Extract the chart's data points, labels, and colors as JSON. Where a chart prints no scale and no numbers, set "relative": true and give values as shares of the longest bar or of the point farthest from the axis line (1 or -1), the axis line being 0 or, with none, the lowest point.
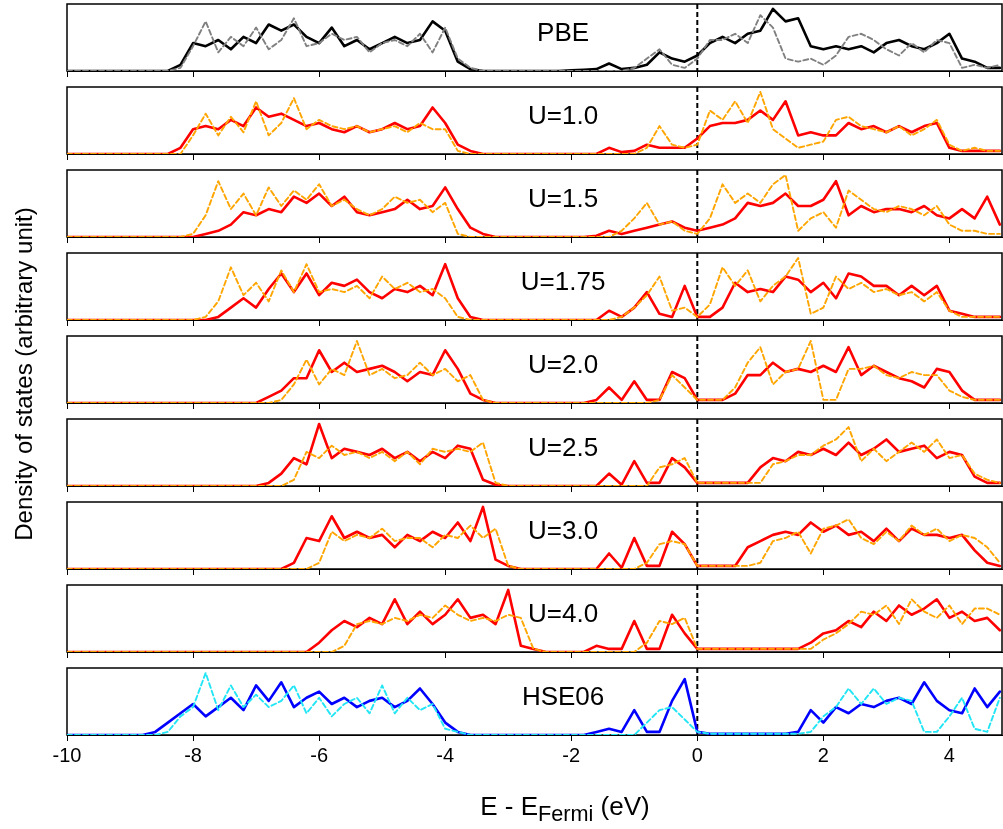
{
  "chart_data": [
    {
      "type": "line",
      "relative": true,
      "annotations": [
        "PBE"
      ],
      "tick_labels": false,
      "marker": "none",
      "xlim": [
        -10,
        4.85
      ],
      "xticks": [
        -10,
        -8,
        -6,
        -4,
        -2,
        0,
        2,
        4
      ],
      "ref_lines": [
        {
          "axis": "x",
          "value": 0,
          "color": "#000000",
          "line_style": "dashed"
        }
      ],
      "x": [
        -10,
        -8.8,
        -8.6,
        -8.4,
        -8.2,
        -8,
        -7.8,
        -7.6,
        -7.4,
        -7.2,
        -7,
        -6.8,
        -6.6,
        -6.4,
        -6.2,
        -6,
        -5.8,
        -5.6,
        -5.4,
        -5.2,
        -5,
        -4.8,
        -4.6,
        -4.4,
        -4.2,
        -4,
        -3.8,
        -3.6,
        -3.4,
        -3.2,
        -3,
        -2.8,
        -2.6,
        -2.4,
        -2.2,
        -2,
        -1.8,
        -1.6,
        -1.4,
        -1.2,
        -1,
        -0.8,
        -0.6,
        -0.4,
        -0.2,
        0,
        0.2,
        0.4,
        0.6,
        0.8,
        1,
        1.2,
        1.4,
        1.6,
        1.8,
        2,
        2.2,
        2.4,
        2.6,
        2.8,
        3,
        3.2,
        3.4,
        3.6,
        3.8,
        4,
        4.2,
        4.4,
        4.6,
        4.8
      ],
      "series": [
        {
          "color": "#000000",
          "line_style": "solid",
          "values": [
            0,
            0,
            0,
            0,
            0.1,
            0.45,
            0.4,
            0.5,
            0.35,
            0.55,
            0.45,
            0.75,
            0.65,
            0.75,
            0.55,
            0.45,
            0.7,
            0.4,
            0.5,
            0.35,
            0.45,
            0.55,
            0.45,
            0.5,
            0.8,
            0.65,
            0.15,
            0.03,
            0,
            0,
            0,
            0,
            0,
            0,
            0,
            0.01,
            0.02,
            0.03,
            0.12,
            0.03,
            0.05,
            0.1,
            0.3,
            0.2,
            0.15,
            0.25,
            0.45,
            0.55,
            0.45,
            0.6,
            0.65,
            1,
            0.8,
            0.85,
            0.4,
            0.35,
            0.4,
            0.35,
            0.4,
            0.3,
            0.45,
            0.5,
            0.4,
            0.35,
            0.45,
            0.6,
            0.2,
            0.15,
            0.05,
            0.05
          ]
        },
        {
          "color": "#808080",
          "line_style": "dashed",
          "values": [
            0,
            0,
            0,
            0,
            0.05,
            0.4,
            0.8,
            0.3,
            0.55,
            0.4,
            0.7,
            0.35,
            0.5,
            0.85,
            0.4,
            0.45,
            0.6,
            0.5,
            0.55,
            0.3,
            0.45,
            0.5,
            0.4,
            0.6,
            0.3,
            0.7,
            0.2,
            0.05,
            0,
            0,
            0,
            0,
            0,
            0,
            0,
            0,
            0,
            0,
            0,
            0,
            0.05,
            0.2,
            0.35,
            0.1,
            0.05,
            0.2,
            0.5,
            0.5,
            0.6,
            0.45,
            0.9,
            0.7,
            0.2,
            0.15,
            0.2,
            0.1,
            0.25,
            0.55,
            0.6,
            0.5,
            0.35,
            0.25,
            0.45,
            0.3,
            0.5,
            0.45,
            0.05,
            0.1,
            0.05,
            0.1
          ]
        }
      ]
    },
    {
      "type": "line",
      "relative": true,
      "annotations": [
        "U=1.0"
      ],
      "tick_labels": false,
      "marker": "none",
      "xlim": [
        -10,
        4.85
      ],
      "xticks": [
        -10,
        -8,
        -6,
        -4,
        -2,
        0,
        2,
        4
      ],
      "ref_lines": [
        {
          "axis": "x",
          "value": 0,
          "color": "#000000",
          "line_style": "dashed"
        }
      ],
      "x": [
        -10,
        -8.8,
        -8.6,
        -8.4,
        -8.2,
        -8,
        -7.8,
        -7.6,
        -7.4,
        -7.2,
        -7,
        -6.8,
        -6.6,
        -6.4,
        -6.2,
        -6,
        -5.8,
        -5.6,
        -5.4,
        -5.2,
        -5,
        -4.8,
        -4.6,
        -4.4,
        -4.2,
        -4,
        -3.8,
        -3.6,
        -3.4,
        -3.2,
        -3,
        -2.8,
        -2.6,
        -2.4,
        -2.2,
        -2,
        -1.8,
        -1.6,
        -1.4,
        -1.2,
        -1,
        -0.8,
        -0.6,
        -0.4,
        -0.2,
        0,
        0.2,
        0.4,
        0.6,
        0.8,
        1,
        1.2,
        1.4,
        1.6,
        1.8,
        2,
        2.2,
        2.4,
        2.6,
        2.8,
        3,
        3.2,
        3.4,
        3.6,
        3.8,
        4,
        4.2,
        4.4,
        4.6,
        4.8
      ],
      "series": [
        {
          "color": "#ff0000",
          "line_style": "solid",
          "values": [
            0,
            0,
            0,
            0,
            0.1,
            0.4,
            0.45,
            0.4,
            0.55,
            0.45,
            0.75,
            0.6,
            0.65,
            0.55,
            0.45,
            0.5,
            0.4,
            0.35,
            0.45,
            0.35,
            0.4,
            0.5,
            0.4,
            0.45,
            0.75,
            0.5,
            0.15,
            0.05,
            0,
            0,
            0,
            0,
            0,
            0,
            0,
            0,
            0,
            0,
            0.1,
            0.03,
            0.05,
            0.15,
            0.1,
            0.1,
            0.1,
            0.25,
            0.45,
            0.5,
            0.5,
            0.55,
            0.7,
            0.55,
            0.85,
            0.3,
            0.35,
            0.3,
            0.3,
            0.5,
            0.4,
            0.45,
            0.35,
            0.45,
            0.35,
            0.45,
            0.5,
            0.1,
            0.05,
            0.05,
            0.05,
            0.05
          ]
        },
        {
          "color": "#ffa500",
          "line_style": "dashed",
          "values": [
            0,
            0,
            0,
            0,
            0,
            0.3,
            0.65,
            0.3,
            0.6,
            0.35,
            0.85,
            0.3,
            0.5,
            0.9,
            0.4,
            0.55,
            0.45,
            0.4,
            0.45,
            0.35,
            0.4,
            0.45,
            0.35,
            0.5,
            0.4,
            0.4,
            0.05,
            0,
            0,
            0,
            0,
            0,
            0,
            0,
            0,
            0,
            0,
            0,
            0,
            0,
            0,
            0.1,
            0.45,
            0.15,
            0.1,
            0.15,
            0.7,
            0.55,
            0.85,
            0.5,
            1,
            0.4,
            0.25,
            0.1,
            0.15,
            0.2,
            0.55,
            0.6,
            0.45,
            0.4,
            0.35,
            0.45,
            0.3,
            0.4,
            0.55,
            0.15,
            0.05,
            0.1,
            0.05,
            0.05
          ]
        }
      ]
    },
    {
      "type": "line",
      "relative": true,
      "annotations": [
        "U=1.5"
      ],
      "tick_labels": false,
      "marker": "none",
      "xlim": [
        -10,
        4.85
      ],
      "xticks": [
        -10,
        -8,
        -6,
        -4,
        -2,
        0,
        2,
        4
      ],
      "ref_lines": [
        {
          "axis": "x",
          "value": 0,
          "color": "#000000",
          "line_style": "dashed"
        }
      ],
      "x": [
        -10,
        -8.8,
        -8.6,
        -8.4,
        -8.2,
        -8,
        -7.8,
        -7.6,
        -7.4,
        -7.2,
        -7,
        -6.8,
        -6.6,
        -6.4,
        -6.2,
        -6,
        -5.8,
        -5.6,
        -5.4,
        -5.2,
        -5,
        -4.8,
        -4.6,
        -4.4,
        -4.2,
        -4,
        -3.8,
        -3.6,
        -3.4,
        -3.2,
        -3,
        -2.8,
        -2.6,
        -2.4,
        -2.2,
        -2,
        -1.8,
        -1.6,
        -1.4,
        -1.2,
        -1,
        -0.8,
        -0.6,
        -0.4,
        -0.2,
        0,
        0.2,
        0.4,
        0.6,
        0.8,
        1,
        1.2,
        1.4,
        1.6,
        1.8,
        2,
        2.2,
        2.4,
        2.6,
        2.8,
        3,
        3.2,
        3.4,
        3.6,
        3.8,
        4,
        4.2,
        4.4,
        4.6,
        4.8
      ],
      "series": [
        {
          "color": "#ff0000",
          "line_style": "solid",
          "values": [
            0,
            0,
            0,
            0,
            0,
            0,
            0.05,
            0.1,
            0.2,
            0.4,
            0.35,
            0.45,
            0.4,
            0.65,
            0.55,
            0.7,
            0.5,
            0.65,
            0.4,
            0.35,
            0.4,
            0.45,
            0.6,
            0.45,
            0.5,
            0.8,
            0.45,
            0.15,
            0.05,
            0,
            0,
            0,
            0,
            0,
            0,
            0,
            0,
            0.02,
            0.1,
            0.05,
            0.1,
            0.15,
            0.2,
            0.25,
            0.15,
            0.1,
            0.15,
            0.2,
            0.3,
            0.55,
            0.5,
            0.55,
            0.7,
            0.5,
            0.5,
            0.6,
            0.9,
            0.35,
            0.5,
            0.4,
            0.45,
            0.45,
            0.4,
            0.5,
            0.35,
            0.3,
            0.45,
            0.3,
            0.65,
            0.2
          ]
        },
        {
          "color": "#ffa500",
          "line_style": "dashed",
          "values": [
            0,
            0,
            0,
            0,
            0,
            0.05,
            0.35,
            0.9,
            0.45,
            0.7,
            0.35,
            0.8,
            0.5,
            0.75,
            0.6,
            0.85,
            0.5,
            0.6,
            0.45,
            0.35,
            0.45,
            0.65,
            0.55,
            0.6,
            0.4,
            0.55,
            0.05,
            0,
            0,
            0,
            0,
            0,
            0,
            0,
            0,
            0,
            0,
            0,
            0,
            0.1,
            0.3,
            0.55,
            0.2,
            0.25,
            0.1,
            0.05,
            0.3,
            0.85,
            0.55,
            0.7,
            0.55,
            0.85,
            1,
            0.1,
            0.3,
            0.4,
            0.15,
            0.75,
            0.6,
            0.45,
            0.4,
            0.5,
            0.45,
            0.35,
            0.5,
            0.2,
            0.1,
            0.1,
            0.05,
            0.05
          ]
        }
      ]
    },
    {
      "type": "line",
      "relative": true,
      "annotations": [
        "U=1.75"
      ],
      "tick_labels": false,
      "marker": "none",
      "xlim": [
        -10,
        4.85
      ],
      "xticks": [
        -10,
        -8,
        -6,
        -4,
        -2,
        0,
        2,
        4
      ],
      "ref_lines": [
        {
          "axis": "x",
          "value": 0,
          "color": "#000000",
          "line_style": "dashed"
        }
      ],
      "x": [
        -10,
        -8.8,
        -8.6,
        -8.4,
        -8.2,
        -8,
        -7.8,
        -7.6,
        -7.4,
        -7.2,
        -7,
        -6.8,
        -6.6,
        -6.4,
        -6.2,
        -6,
        -5.8,
        -5.6,
        -5.4,
        -5.2,
        -5,
        -4.8,
        -4.6,
        -4.4,
        -4.2,
        -4,
        -3.8,
        -3.6,
        -3.4,
        -3.2,
        -3,
        -2.8,
        -2.6,
        -2.4,
        -2.2,
        -2,
        -1.8,
        -1.6,
        -1.4,
        -1.2,
        -1,
        -0.8,
        -0.6,
        -0.4,
        -0.2,
        0,
        0.2,
        0.4,
        0.6,
        0.8,
        1,
        1.2,
        1.4,
        1.6,
        1.8,
        2,
        2.2,
        2.4,
        2.6,
        2.8,
        3,
        3.2,
        3.4,
        3.6,
        3.8,
        4,
        4.2,
        4.4,
        4.6,
        4.8
      ],
      "series": [
        {
          "color": "#ff0000",
          "line_style": "solid",
          "values": [
            0,
            0,
            0,
            0,
            0,
            0,
            0,
            0.05,
            0.2,
            0.35,
            0.2,
            0.5,
            0.75,
            0.45,
            0.75,
            0.4,
            0.6,
            0.55,
            0.65,
            0.45,
            0.35,
            0.5,
            0.45,
            0.55,
            0.4,
            0.9,
            0.35,
            0.05,
            0,
            0,
            0,
            0,
            0,
            0,
            0,
            0,
            0,
            0,
            0.15,
            0.05,
            0.2,
            0.45,
            0.1,
            0.05,
            0.55,
            0.05,
            0.05,
            0.2,
            0.6,
            0.45,
            0.5,
            0.45,
            0.7,
            0.65,
            0.45,
            0.6,
            0.35,
            0.75,
            0.7,
            0.55,
            0.55,
            0.4,
            0.55,
            0.4,
            0.55,
            0.15,
            0.1,
            0.05,
            0.05,
            0.05
          ]
        },
        {
          "color": "#ffa500",
          "line_style": "dashed",
          "values": [
            0,
            0,
            0,
            0,
            0,
            0,
            0.05,
            0.3,
            0.85,
            0.4,
            0.6,
            0.3,
            0.8,
            0.45,
            0.9,
            0.45,
            0.5,
            0.45,
            0.55,
            0.35,
            0.7,
            0.5,
            0.6,
            0.45,
            0.5,
            0.35,
            0.05,
            0,
            0,
            0,
            0,
            0,
            0,
            0,
            0,
            0,
            0,
            0,
            0,
            0.05,
            0.2,
            0.4,
            0.7,
            0.15,
            0.2,
            0.05,
            0.25,
            0.85,
            0.55,
            0.8,
            0.3,
            0.55,
            0.7,
            1,
            0.1,
            0.2,
            0.7,
            0.5,
            0.6,
            0.45,
            0.5,
            0.4,
            0.45,
            0.3,
            0.45,
            0.15,
            0.05,
            0.05,
            0.05,
            0.05
          ]
        }
      ]
    },
    {
      "type": "line",
      "relative": true,
      "annotations": [
        "U=2.0"
      ],
      "ylabel": "Density of states (arbitrary unit)",
      "tick_labels": false,
      "marker": "none",
      "xlim": [
        -10,
        4.85
      ],
      "xticks": [
        -10,
        -8,
        -6,
        -4,
        -2,
        0,
        2,
        4
      ],
      "ref_lines": [
        {
          "axis": "x",
          "value": 0,
          "color": "#000000",
          "line_style": "dashed"
        }
      ],
      "x": [
        -10,
        -8.8,
        -8.6,
        -8.4,
        -8.2,
        -8,
        -7.8,
        -7.6,
        -7.4,
        -7.2,
        -7,
        -6.8,
        -6.6,
        -6.4,
        -6.2,
        -6,
        -5.8,
        -5.6,
        -5.4,
        -5.2,
        -5,
        -4.8,
        -4.6,
        -4.4,
        -4.2,
        -4,
        -3.8,
        -3.6,
        -3.4,
        -3.2,
        -3,
        -2.8,
        -2.6,
        -2.4,
        -2.2,
        -2,
        -1.8,
        -1.6,
        -1.4,
        -1.2,
        -1,
        -0.8,
        -0.6,
        -0.4,
        -0.2,
        0,
        0.2,
        0.4,
        0.6,
        0.8,
        1,
        1.2,
        1.4,
        1.6,
        1.8,
        2,
        2.2,
        2.4,
        2.6,
        2.8,
        3,
        3.2,
        3.4,
        3.6,
        3.8,
        4,
        4.2,
        4.4,
        4.6,
        4.8
      ],
      "series": [
        {
          "color": "#ff0000",
          "line_style": "solid",
          "values": [
            0,
            0,
            0,
            0,
            0,
            0,
            0,
            0,
            0,
            0,
            0,
            0.1,
            0.2,
            0.4,
            0.4,
            0.85,
            0.5,
            0.65,
            0.5,
            0.55,
            0.6,
            0.5,
            0.35,
            0.5,
            0.45,
            0.85,
            0.55,
            0.15,
            0.05,
            0,
            0,
            0,
            0,
            0,
            0,
            0,
            0,
            0.05,
            0.25,
            0.05,
            0.35,
            0.05,
            0.05,
            0.5,
            0.4,
            0.05,
            0.05,
            0.05,
            0.15,
            0.45,
            0.45,
            0.65,
            0.5,
            0.55,
            0.5,
            0.6,
            0.5,
            0.9,
            0.45,
            0.6,
            0.5,
            0.4,
            0.35,
            0.25,
            0.55,
            0.5,
            0.2,
            0.05,
            0.05,
            0.05
          ]
        },
        {
          "color": "#ffa500",
          "line_style": "dashed",
          "values": [
            0,
            0,
            0,
            0,
            0,
            0,
            0,
            0,
            0,
            0,
            0,
            0,
            0.05,
            0.3,
            0.7,
            0.3,
            0.55,
            0.45,
            1,
            0.45,
            0.55,
            0.4,
            0.45,
            0.65,
            0.45,
            0.55,
            0.35,
            0.45,
            0.05,
            0,
            0,
            0,
            0,
            0,
            0,
            0,
            0,
            0,
            0,
            0,
            0,
            0,
            0.05,
            0.45,
            0.25,
            0.05,
            0.05,
            0.05,
            0.25,
            0.65,
            0.9,
            0.3,
            0.5,
            0.55,
            1,
            0.05,
            0.05,
            0.55,
            0.55,
            0.6,
            0.45,
            0.4,
            0.5,
            0.45,
            0.45,
            0.2,
            0.1,
            0.05,
            0.05,
            0.05
          ]
        }
      ]
    },
    {
      "type": "line",
      "relative": true,
      "annotations": [
        "U=2.5"
      ],
      "tick_labels": false,
      "marker": "none",
      "xlim": [
        -10,
        4.85
      ],
      "xticks": [
        -10,
        -8,
        -6,
        -4,
        -2,
        0,
        2,
        4
      ],
      "ref_lines": [
        {
          "axis": "x",
          "value": 0,
          "color": "#000000",
          "line_style": "dashed"
        }
      ],
      "x": [
        -10,
        -8.8,
        -8.6,
        -8.4,
        -8.2,
        -8,
        -7.8,
        -7.6,
        -7.4,
        -7.2,
        -7,
        -6.8,
        -6.6,
        -6.4,
        -6.2,
        -6,
        -5.8,
        -5.6,
        -5.4,
        -5.2,
        -5,
        -4.8,
        -4.6,
        -4.4,
        -4.2,
        -4,
        -3.8,
        -3.6,
        -3.4,
        -3.2,
        -3,
        -2.8,
        -2.6,
        -2.4,
        -2.2,
        -2,
        -1.8,
        -1.6,
        -1.4,
        -1.2,
        -1,
        -0.8,
        -0.6,
        -0.4,
        -0.2,
        0,
        0.2,
        0.4,
        0.6,
        0.8,
        1,
        1.2,
        1.4,
        1.6,
        1.8,
        2,
        2.2,
        2.4,
        2.6,
        2.8,
        3,
        3.2,
        3.4,
        3.6,
        3.8,
        4,
        4.2,
        4.4,
        4.6,
        4.8
      ],
      "series": [
        {
          "color": "#ff0000",
          "line_style": "solid",
          "values": [
            0,
            0,
            0,
            0,
            0,
            0,
            0,
            0,
            0,
            0,
            0,
            0.05,
            0.2,
            0.45,
            0.35,
            1,
            0.45,
            0.6,
            0.55,
            0.5,
            0.6,
            0.45,
            0.55,
            0.4,
            0.55,
            0.45,
            0.65,
            0.6,
            0.1,
            0.02,
            0,
            0,
            0,
            0,
            0,
            0,
            0,
            0,
            0.2,
            0.02,
            0.4,
            0.05,
            0.05,
            0.45,
            0.3,
            0.05,
            0.05,
            0.05,
            0.05,
            0.05,
            0.3,
            0.45,
            0.4,
            0.55,
            0.5,
            0.6,
            0.5,
            0.7,
            0.5,
            0.6,
            0.75,
            0.55,
            0.6,
            0.65,
            0.45,
            0.55,
            0.5,
            0.15,
            0.05,
            0.05
          ]
        },
        {
          "color": "#ffa500",
          "line_style": "dashed",
          "values": [
            0,
            0,
            0,
            0,
            0,
            0,
            0,
            0,
            0,
            0,
            0,
            0,
            0,
            0.1,
            0.55,
            0.45,
            0.65,
            0.5,
            0.55,
            0.45,
            0.55,
            0.4,
            0.55,
            0.35,
            0.6,
            0.55,
            0.6,
            0.55,
            0.7,
            0.05,
            0,
            0,
            0,
            0,
            0,
            0,
            0,
            0,
            0,
            0,
            0,
            0,
            0.3,
            0.35,
            0.45,
            0.05,
            0.05,
            0.05,
            0.05,
            0.05,
            0.05,
            0.35,
            0.4,
            0.5,
            0.5,
            0.65,
            0.75,
            0.95,
            0.4,
            0.6,
            0.4,
            0.55,
            0.7,
            0.55,
            0.75,
            0.45,
            0.5,
            0.2,
            0.1,
            0.05
          ]
        }
      ]
    },
    {
      "type": "line",
      "relative": true,
      "annotations": [
        "U=3.0"
      ],
      "tick_labels": false,
      "marker": "none",
      "xlim": [
        -10,
        4.85
      ],
      "xticks": [
        -10,
        -8,
        -6,
        -4,
        -2,
        0,
        2,
        4
      ],
      "ref_lines": [
        {
          "axis": "x",
          "value": 0,
          "color": "#000000",
          "line_style": "dashed"
        }
      ],
      "x": [
        -10,
        -8.8,
        -8.6,
        -8.4,
        -8.2,
        -8,
        -7.8,
        -7.6,
        -7.4,
        -7.2,
        -7,
        -6.8,
        -6.6,
        -6.4,
        -6.2,
        -6,
        -5.8,
        -5.6,
        -5.4,
        -5.2,
        -5,
        -4.8,
        -4.6,
        -4.4,
        -4.2,
        -4,
        -3.8,
        -3.6,
        -3.4,
        -3.2,
        -3,
        -2.8,
        -2.6,
        -2.4,
        -2.2,
        -2,
        -1.8,
        -1.6,
        -1.4,
        -1.2,
        -1,
        -0.8,
        -0.6,
        -0.4,
        -0.2,
        0,
        0.2,
        0.4,
        0.6,
        0.8,
        1,
        1.2,
        1.4,
        1.6,
        1.8,
        2,
        2.2,
        2.4,
        2.6,
        2.8,
        3,
        3.2,
        3.4,
        3.6,
        3.8,
        4,
        4.2,
        4.4,
        4.6,
        4.8
      ],
      "series": [
        {
          "color": "#ff0000",
          "line_style": "solid",
          "values": [
            0,
            0,
            0,
            0,
            0,
            0,
            0,
            0,
            0,
            0,
            0,
            0,
            0,
            0.1,
            0.5,
            0.45,
            0.85,
            0.5,
            0.6,
            0.5,
            0.55,
            0.35,
            0.55,
            0.45,
            0.6,
            0.5,
            0.75,
            0.45,
            1,
            0.15,
            0.05,
            0,
            0,
            0,
            0,
            0,
            0,
            0,
            0.25,
            0.02,
            0.5,
            0.05,
            0.05,
            0.6,
            0.4,
            0.05,
            0.05,
            0.05,
            0.05,
            0.35,
            0.45,
            0.55,
            0.6,
            0.55,
            0.75,
            0.6,
            0.7,
            0.55,
            0.6,
            0.45,
            0.65,
            0.45,
            0.65,
            0.55,
            0.55,
            0.5,
            0.55,
            0.3,
            0.1,
            0.05
          ]
        },
        {
          "color": "#ffa500",
          "line_style": "dashed",
          "values": [
            0,
            0,
            0,
            0,
            0,
            0,
            0,
            0,
            0,
            0,
            0,
            0,
            0,
            0,
            0,
            0.1,
            0.6,
            0.45,
            0.55,
            0.5,
            0.65,
            0.45,
            0.5,
            0.5,
            0.35,
            0.55,
            0.5,
            0.7,
            0.5,
            0.65,
            0.05,
            0,
            0,
            0,
            0,
            0,
            0,
            0,
            0,
            0,
            0,
            0.1,
            0.4,
            0.45,
            0.4,
            0.05,
            0.05,
            0.05,
            0.05,
            0.05,
            0.1,
            0.45,
            0.5,
            0.6,
            0.25,
            0.65,
            0.7,
            0.8,
            0.5,
            0.4,
            0.6,
            0.45,
            0.7,
            0.55,
            0.65,
            0.45,
            0.55,
            0.5,
            0.35,
            0.1
          ]
        }
      ]
    },
    {
      "type": "line",
      "relative": true,
      "annotations": [
        "U=4.0"
      ],
      "tick_labels": false,
      "marker": "none",
      "xlim": [
        -10,
        4.85
      ],
      "xticks": [
        -10,
        -8,
        -6,
        -4,
        -2,
        0,
        2,
        4
      ],
      "ref_lines": [
        {
          "axis": "x",
          "value": 0,
          "color": "#000000",
          "line_style": "dashed"
        }
      ],
      "x": [
        -10,
        -8.8,
        -8.6,
        -8.4,
        -8.2,
        -8,
        -7.8,
        -7.6,
        -7.4,
        -7.2,
        -7,
        -6.8,
        -6.6,
        -6.4,
        -6.2,
        -6,
        -5.8,
        -5.6,
        -5.4,
        -5.2,
        -5,
        -4.8,
        -4.6,
        -4.4,
        -4.2,
        -4,
        -3.8,
        -3.6,
        -3.4,
        -3.2,
        -3,
        -2.8,
        -2.6,
        -2.4,
        -2.2,
        -2,
        -1.8,
        -1.6,
        -1.4,
        -1.2,
        -1,
        -0.8,
        -0.6,
        -0.4,
        -0.2,
        0,
        0.2,
        0.4,
        0.6,
        0.8,
        1,
        1.2,
        1.4,
        1.6,
        1.8,
        2,
        2.2,
        2.4,
        2.6,
        2.8,
        3,
        3.2,
        3.4,
        3.6,
        3.8,
        4,
        4.2,
        4.4,
        4.6,
        4.8
      ],
      "series": [
        {
          "color": "#ff0000",
          "line_style": "solid",
          "values": [
            0,
            0,
            0,
            0,
            0,
            0,
            0,
            0,
            0,
            0,
            0,
            0,
            0,
            0,
            0,
            0.15,
            0.35,
            0.5,
            0.4,
            0.55,
            0.45,
            0.85,
            0.45,
            0.65,
            0.45,
            0.6,
            0.85,
            0.55,
            0.6,
            0.45,
            1,
            0.1,
            0.05,
            0,
            0,
            0,
            0,
            0.1,
            0.05,
            0.05,
            0.5,
            0.05,
            0.05,
            0.6,
            0.3,
            0.05,
            0.05,
            0.05,
            0.05,
            0.05,
            0.05,
            0.05,
            0.05,
            0.05,
            0.15,
            0.3,
            0.35,
            0.5,
            0.4,
            0.65,
            0.5,
            0.75,
            0.6,
            0.7,
            0.85,
            0.55,
            0.65,
            0.5,
            0.55,
            0.35
          ]
        },
        {
          "color": "#ffa500",
          "line_style": "dashed",
          "values": [
            0,
            0,
            0,
            0,
            0,
            0,
            0,
            0,
            0,
            0,
            0,
            0,
            0,
            0,
            0,
            0,
            0,
            0.1,
            0.45,
            0.5,
            0.45,
            0.55,
            0.5,
            0.6,
            0.55,
            0.75,
            0.6,
            0.5,
            0.55,
            0.5,
            0.6,
            0.55,
            0.05,
            0,
            0,
            0,
            0,
            0,
            0,
            0,
            0,
            0.15,
            0.5,
            0.45,
            0.55,
            0.05,
            0.05,
            0.05,
            0.05,
            0.05,
            0.05,
            0.05,
            0.05,
            0.05,
            0.05,
            0.2,
            0.3,
            0.45,
            0.65,
            0.6,
            0.75,
            0.45,
            0.85,
            0.65,
            0.55,
            0.75,
            0.45,
            0.7,
            0.7,
            0.6
          ]
        }
      ]
    },
    {
      "type": "line",
      "relative": true,
      "annotations": [
        "HSE06"
      ],
      "xlabel": "E - E$_{Fermi}$ (eV)",
      "tick_labels": "x",
      "marker": "none",
      "xlim": [
        -10,
        4.85
      ],
      "xticks": [
        -10,
        -8,
        -6,
        -4,
        -2,
        0,
        2,
        4
      ],
      "ref_lines": [
        {
          "axis": "x",
          "value": 0,
          "color": "#000000",
          "line_style": "dashed"
        }
      ],
      "x": [
        -10,
        -8.8,
        -8.6,
        -8.4,
        -8.2,
        -8,
        -7.8,
        -7.6,
        -7.4,
        -7.2,
        -7,
        -6.8,
        -6.6,
        -6.4,
        -6.2,
        -6,
        -5.8,
        -5.6,
        -5.4,
        -5.2,
        -5,
        -4.8,
        -4.6,
        -4.4,
        -4.2,
        -4,
        -3.8,
        -3.6,
        -3.4,
        -3.2,
        -3,
        -2.8,
        -2.6,
        -2.4,
        -2.2,
        -2,
        -1.8,
        -1.6,
        -1.4,
        -1.2,
        -1,
        -0.8,
        -0.6,
        -0.4,
        -0.2,
        0,
        0.2,
        0.4,
        0.6,
        0.8,
        1,
        1.2,
        1.4,
        1.6,
        1.8,
        2,
        2.2,
        2.4,
        2.6,
        2.8,
        3,
        3.2,
        3.4,
        3.6,
        3.8,
        4,
        4.2,
        4.4,
        4.6,
        4.8
      ],
      "series": [
        {
          "color": "#0000ff",
          "line_style": "solid",
          "values": [
            0,
            0,
            0.05,
            0.2,
            0.35,
            0.5,
            0.3,
            0.45,
            0.6,
            0.4,
            0.8,
            0.55,
            0.85,
            0.45,
            0.6,
            0.7,
            0.5,
            0.6,
            0.45,
            0.55,
            0.6,
            0.45,
            0.55,
            0.75,
            0.5,
            0.2,
            0.05,
            0,
            0,
            0,
            0,
            0,
            0,
            0,
            0,
            0,
            0,
            0.05,
            0.1,
            0.05,
            0.4,
            0.05,
            0.05,
            0.55,
            0.9,
            0.05,
            0.02,
            0.02,
            0.02,
            0.02,
            0.02,
            0.02,
            0.02,
            0.05,
            0.4,
            0.2,
            0.45,
            0.35,
            0.5,
            0.45,
            0.55,
            0.6,
            0.5,
            0.85,
            0.55,
            0.4,
            0.35,
            0.75,
            0.45,
            0.7
          ]
        },
        {
          "color": "#22e5f5",
          "line_style": "dashed",
          "values": [
            0,
            0,
            0,
            0.05,
            0.3,
            0.45,
            1,
            0.4,
            0.8,
            0.45,
            0.65,
            0.45,
            0.55,
            0.8,
            0.35,
            0.6,
            0.3,
            0.5,
            0.6,
            0.35,
            0.8,
            0.35,
            0.6,
            0.4,
            0.5,
            0.1,
            0.05,
            0,
            0,
            0,
            0,
            0,
            0,
            0,
            0,
            0,
            0,
            0,
            0,
            0,
            0,
            0.2,
            0.4,
            0.45,
            0.25,
            0.05,
            0.02,
            0.02,
            0.02,
            0.02,
            0.02,
            0.02,
            0.02,
            0.02,
            0.05,
            0.3,
            0.45,
            0.75,
            0.5,
            0.75,
            0.5,
            0.6,
            0.55,
            0.05,
            0.05,
            0.3,
            0.6,
            0.1,
            0.05,
            0.6
          ]
        }
      ]
    }
  ]
}
